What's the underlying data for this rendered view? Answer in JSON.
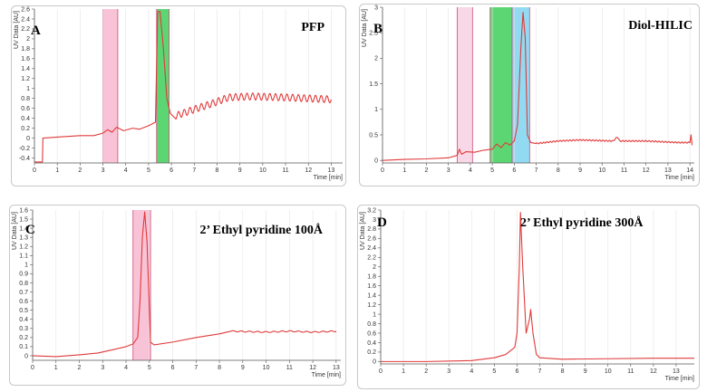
{
  "chart_data": [
    {
      "type": "line",
      "panel_letter": "A",
      "title": "PFP",
      "xlabel": "Time [min]",
      "ylabel": "UV Data [AU]",
      "xlim": [
        0,
        13.5
      ],
      "ylim": [
        -0.5,
        2.6
      ],
      "xticks": [
        0,
        1,
        2,
        3,
        4,
        5,
        6,
        7,
        8,
        9,
        10,
        11,
        12,
        13
      ],
      "yticks": [
        -0.4,
        -0.2,
        0,
        0.2,
        0.4,
        0.6,
        0.8,
        1,
        1.2,
        1.4,
        1.6,
        1.8,
        2,
        2.2,
        2.4,
        2.6
      ],
      "ytick_labels": [
        "-0.4",
        "-0.2",
        "0",
        "0.2",
        "0.4",
        "0.6",
        "0.8",
        "1",
        "1.2",
        "1.4",
        "1.6",
        "1.8",
        "2",
        "2.2",
        "2.4",
        "2.6"
      ],
      "regions": [
        {
          "x0": 3.0,
          "x1": 3.65,
          "color": "#f7b8cf"
        },
        {
          "x0": 5.35,
          "x1": 5.9,
          "color": "#3fcf5a"
        }
      ],
      "series": [
        {
          "name": "UV trace",
          "color": "#e03a3a",
          "points": [
            [
              0,
              -0.48
            ],
            [
              0.35,
              -0.48
            ],
            [
              0.37,
              0.0
            ],
            [
              1.0,
              0.02
            ],
            [
              2.0,
              0.05
            ],
            [
              2.6,
              0.05
            ],
            [
              3.0,
              0.1
            ],
            [
              3.2,
              0.17
            ],
            [
              3.4,
              0.12
            ],
            [
              3.6,
              0.22
            ],
            [
              3.9,
              0.15
            ],
            [
              4.3,
              0.2
            ],
            [
              4.6,
              0.18
            ],
            [
              5.0,
              0.25
            ],
            [
              5.3,
              0.32
            ],
            [
              5.4,
              2.55
            ],
            [
              5.5,
              2.55
            ],
            [
              5.65,
              1.8
            ],
            [
              5.8,
              0.8
            ],
            [
              5.95,
              0.5
            ],
            [
              6.2,
              0.45
            ],
            [
              7.0,
              0.58
            ],
            [
              7.8,
              0.7
            ],
            [
              8.5,
              0.82
            ],
            [
              9.5,
              0.84
            ],
            [
              11.0,
              0.82
            ],
            [
              13.0,
              0.78
            ]
          ],
          "oscillation": {
            "x0": 6.0,
            "x1": 13.0,
            "period": 0.25,
            "amplitude": 0.07
          }
        }
      ]
    },
    {
      "type": "line",
      "panel_letter": "B",
      "title": "Diol-HILIC",
      "xlabel": "Time [min]",
      "ylabel": "UV Data [AU]",
      "xlim": [
        0,
        14.2
      ],
      "ylim": [
        -0.05,
        3.0
      ],
      "xticks": [
        0,
        1,
        2,
        3,
        4,
        5,
        6,
        7,
        8,
        9,
        10,
        11,
        12,
        13,
        14
      ],
      "yticks": [
        0,
        0.5,
        1,
        1.5,
        2,
        2.5,
        3
      ],
      "ytick_labels": [
        "0",
        "0.5",
        "1",
        "1.5",
        "2",
        "2.5",
        "3"
      ],
      "regions": [
        {
          "x0": 3.4,
          "x1": 4.1,
          "color": "#f7d0e2"
        },
        {
          "x0": 4.9,
          "x1": 5.9,
          "color": "#3fcf5a"
        },
        {
          "x0": 5.9,
          "x1": 6.7,
          "color": "#7fd3f0"
        }
      ],
      "series": [
        {
          "name": "UV trace",
          "color": "#e03a3a",
          "points": [
            [
              0,
              0.0
            ],
            [
              1.0,
              0.02
            ],
            [
              2.0,
              0.03
            ],
            [
              3.0,
              0.05
            ],
            [
              3.4,
              0.1
            ],
            [
              3.5,
              0.22
            ],
            [
              3.6,
              0.12
            ],
            [
              3.8,
              0.17
            ],
            [
              4.2,
              0.16
            ],
            [
              4.6,
              0.2
            ],
            [
              5.0,
              0.22
            ],
            [
              5.2,
              0.32
            ],
            [
              5.4,
              0.25
            ],
            [
              5.6,
              0.35
            ],
            [
              5.8,
              0.3
            ],
            [
              6.0,
              0.38
            ],
            [
              6.15,
              0.7
            ],
            [
              6.3,
              2.2
            ],
            [
              6.4,
              2.9
            ],
            [
              6.5,
              2.4
            ],
            [
              6.6,
              0.5
            ],
            [
              6.75,
              0.35
            ],
            [
              7.0,
              0.33
            ],
            [
              8.0,
              0.38
            ],
            [
              9.0,
              0.4
            ],
            [
              10.5,
              0.38
            ],
            [
              10.7,
              0.46
            ],
            [
              10.8,
              0.38
            ],
            [
              12.0,
              0.38
            ],
            [
              13.5,
              0.35
            ],
            [
              14.0,
              0.35
            ],
            [
              14.05,
              0.5
            ],
            [
              14.1,
              0.3
            ]
          ],
          "oscillation": {
            "x0": 7.0,
            "x1": 14.0,
            "period": 0.15,
            "amplitude": 0.012
          }
        }
      ]
    },
    {
      "type": "line",
      "panel_letter": "C",
      "title": "2’ Ethyl pyridine 100Å",
      "xlabel": "Time [min]",
      "ylabel": "UV Data [AU]",
      "xlim": [
        0,
        13.2
      ],
      "ylim": [
        -0.05,
        1.6
      ],
      "xticks": [
        0,
        1,
        2,
        3,
        4,
        5,
        6,
        7,
        8,
        9,
        10,
        11,
        12,
        13
      ],
      "yticks": [
        0,
        0.1,
        0.2,
        0.3,
        0.4,
        0.5,
        0.6,
        0.7,
        0.8,
        0.9,
        1,
        1.1,
        1.2,
        1.3,
        1.4,
        1.5,
        1.6
      ],
      "ytick_labels": [
        "0",
        "0.1",
        "0.2",
        "0.3",
        "0.4",
        "0.5",
        "0.6",
        "0.7",
        "0.8",
        "0.9",
        "1",
        "1.1",
        "1.2",
        "1.3",
        "1.4",
        "1.5",
        "1.6"
      ],
      "regions": [
        {
          "x0": 4.3,
          "x1": 5.05,
          "color": "#f7b8cf"
        }
      ],
      "series": [
        {
          "name": "UV trace",
          "color": "#e03a3a",
          "points": [
            [
              0,
              0.0
            ],
            [
              1.0,
              -0.01
            ],
            [
              2.0,
              0.01
            ],
            [
              2.8,
              0.03
            ],
            [
              3.5,
              0.07
            ],
            [
              4.0,
              0.1
            ],
            [
              4.3,
              0.13
            ],
            [
              4.5,
              0.2
            ],
            [
              4.6,
              0.6
            ],
            [
              4.7,
              1.3
            ],
            [
              4.8,
              1.58
            ],
            [
              4.9,
              1.25
            ],
            [
              5.0,
              0.5
            ],
            [
              5.05,
              0.15
            ],
            [
              5.2,
              0.12
            ],
            [
              6.0,
              0.15
            ],
            [
              7.0,
              0.2
            ],
            [
              8.0,
              0.24
            ],
            [
              8.5,
              0.27
            ],
            [
              10.0,
              0.26
            ],
            [
              11.0,
              0.27
            ],
            [
              12.0,
              0.26
            ],
            [
              13.0,
              0.27
            ]
          ],
          "oscillation": {
            "x0": 8.5,
            "x1": 13.0,
            "period": 0.35,
            "amplitude": 0.006
          }
        }
      ]
    },
    {
      "type": "line",
      "panel_letter": "D",
      "title": "2’ Ethyl pyridine 300Å",
      "xlabel": "Time [min]",
      "ylabel": "UV Data [AU]",
      "xlim": [
        0,
        13.8
      ],
      "ylim": [
        -0.05,
        3.2
      ],
      "xticks": [
        0,
        1,
        2,
        3,
        4,
        5,
        6,
        7,
        8,
        9,
        10,
        11,
        12,
        13
      ],
      "yticks": [
        0,
        0.2,
        0.4,
        0.6,
        0.8,
        1,
        1.2,
        1.4,
        1.6,
        1.8,
        2,
        2.2,
        2.4,
        2.6,
        2.8,
        3,
        3.2
      ],
      "ytick_labels": [
        "0",
        "0.2",
        "0.4",
        "0.6",
        "0.8",
        "1",
        "1.2",
        "1.4",
        "1.6",
        "1.8",
        "2",
        "2.2",
        "2.4",
        "2.6",
        "2.8",
        "3",
        "3.2"
      ],
      "regions": [],
      "series": [
        {
          "name": "UV trace",
          "color": "#e03a3a",
          "points": [
            [
              0,
              0.0
            ],
            [
              2.0,
              0.0
            ],
            [
              4.0,
              0.02
            ],
            [
              5.0,
              0.08
            ],
            [
              5.5,
              0.15
            ],
            [
              5.9,
              0.3
            ],
            [
              6.0,
              0.6
            ],
            [
              6.1,
              2.0
            ],
            [
              6.15,
              3.15
            ],
            [
              6.25,
              2.0
            ],
            [
              6.4,
              0.6
            ],
            [
              6.55,
              0.9
            ],
            [
              6.6,
              1.1
            ],
            [
              6.7,
              0.6
            ],
            [
              6.85,
              0.15
            ],
            [
              7.0,
              0.08
            ],
            [
              8.0,
              0.05
            ],
            [
              10.0,
              0.06
            ],
            [
              12.0,
              0.07
            ],
            [
              13.8,
              0.07
            ]
          ],
          "oscillation": null
        }
      ]
    }
  ]
}
